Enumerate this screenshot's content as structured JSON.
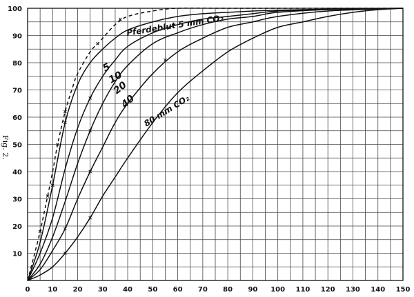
{
  "figure_label": "Fig. 2.",
  "chart_data": {
    "type": "line",
    "xlim": [
      0,
      150
    ],
    "ylim": [
      0,
      100
    ],
    "x_ticks": [
      0,
      10,
      20,
      30,
      40,
      50,
      60,
      70,
      80,
      90,
      100,
      110,
      120,
      130,
      140,
      150
    ],
    "y_ticks": [
      10,
      20,
      30,
      40,
      50,
      60,
      70,
      80,
      90,
      100
    ],
    "x_tick_labels": [
      "0",
      "10",
      "20",
      "30",
      "40",
      "50",
      "60",
      "70",
      "80",
      "90",
      "100",
      "110",
      "120",
      "130",
      "140",
      "150"
    ],
    "y_tick_labels": [
      "10",
      "20",
      "30",
      "40",
      "50",
      "60",
      "70",
      "80",
      "90",
      "100"
    ],
    "grid": true,
    "title": "",
    "xlabel": "",
    "ylabel": "",
    "series": [
      {
        "name": "Pferdeblut 5 mm CO₂",
        "style": "dashed",
        "x": [
          0,
          2,
          5,
          8,
          10,
          12,
          15,
          18,
          20,
          25,
          28,
          30,
          35,
          40,
          50,
          60,
          80,
          100,
          130,
          150
        ],
        "y": [
          0,
          7,
          18,
          31,
          40,
          50,
          62,
          71,
          76,
          84,
          87,
          89,
          94,
          97,
          99,
          100,
          100,
          100,
          100,
          100
        ],
        "marker_x": [
          5,
          8,
          12,
          15,
          28,
          37
        ],
        "marker_y": [
          18,
          31,
          50,
          62,
          87,
          96
        ]
      },
      {
        "name": "5",
        "style": "solid",
        "x": [
          0,
          5,
          10,
          15,
          20,
          25,
          30,
          35,
          40,
          50,
          60,
          70,
          80,
          90,
          100,
          120,
          150
        ],
        "y": [
          0,
          14,
          35,
          58,
          72,
          80,
          85,
          89,
          92,
          95,
          97,
          98,
          98.5,
          99,
          99.3,
          99.7,
          100
        ],
        "marker_x": [
          10,
          15
        ],
        "marker_y": [
          35,
          58
        ]
      },
      {
        "name": "10",
        "style": "solid",
        "x": [
          0,
          5,
          10,
          15,
          20,
          25,
          30,
          35,
          40,
          50,
          60,
          70,
          80,
          90,
          100,
          120,
          150
        ],
        "y": [
          0,
          10,
          23,
          41,
          56,
          67,
          75,
          81,
          86,
          91,
          94,
          96,
          97,
          98,
          99,
          99.6,
          100
        ],
        "marker_x": [
          25
        ],
        "marker_y": [
          67
        ]
      },
      {
        "name": "20",
        "style": "solid",
        "x": [
          0,
          5,
          10,
          15,
          20,
          25,
          30,
          35,
          40,
          50,
          60,
          70,
          80,
          90,
          100,
          120,
          150
        ],
        "y": [
          0,
          6,
          16,
          29,
          43,
          55,
          65,
          73,
          79,
          87,
          91,
          94,
          96,
          97,
          98.5,
          99.5,
          100
        ],
        "marker_x": [
          25
        ],
        "marker_y": [
          55
        ]
      },
      {
        "name": "40",
        "style": "solid",
        "x": [
          0,
          5,
          10,
          15,
          20,
          25,
          30,
          35,
          40,
          50,
          60,
          70,
          80,
          90,
          100,
          120,
          150
        ],
        "y": [
          0,
          4,
          11,
          19,
          30,
          40,
          49,
          58,
          65,
          76,
          84,
          89,
          93,
          95,
          97,
          99,
          100
        ],
        "marker_x": [
          15,
          25,
          55
        ],
        "marker_y": [
          19,
          40,
          81
        ]
      },
      {
        "name": "80 mm CO₂",
        "style": "solid",
        "x": [
          0,
          5,
          10,
          15,
          20,
          25,
          30,
          35,
          40,
          50,
          60,
          70,
          80,
          90,
          100,
          110,
          120,
          130,
          140,
          150
        ],
        "y": [
          0,
          2,
          5,
          10,
          16,
          23,
          31,
          38,
          45,
          58,
          69,
          77,
          84,
          89,
          93,
          95,
          97,
          98.5,
          99.5,
          100
        ],
        "marker_x": [
          15,
          25
        ],
        "marker_y": [
          10,
          23
        ]
      }
    ],
    "annotations": [
      {
        "text": "Pferdeblut 5 mm CO₂",
        "series": 0
      },
      {
        "text": "5",
        "series": 1
      },
      {
        "text": "10",
        "series": 2
      },
      {
        "text": "20",
        "series": 3
      },
      {
        "text": "40",
        "series": 4
      },
      {
        "text": "80 mm CO₂",
        "series": 5
      }
    ]
  }
}
